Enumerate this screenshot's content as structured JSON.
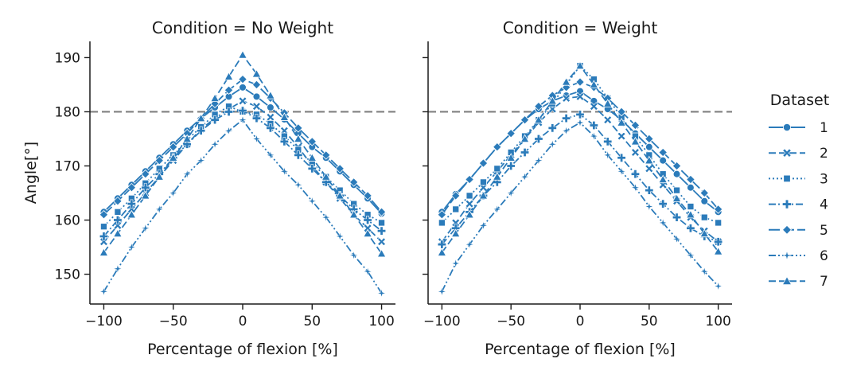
{
  "chart_data": [
    {
      "type": "line",
      "title": "Condition = No Weight",
      "xlabel": "Percentage of flexion [%]",
      "ylabel": "Angle[°]",
      "xlim": [
        -110,
        110
      ],
      "ylim": [
        144.5,
        193
      ],
      "xticks": [
        -100,
        -50,
        0,
        50,
        100
      ],
      "xtick_labels": [
        "−100",
        "−50",
        "0",
        "50",
        "100"
      ],
      "yticks": [
        150,
        160,
        170,
        180,
        190
      ],
      "ytick_labels": [
        "150",
        "160",
        "170",
        "180",
        "190"
      ],
      "reference_line": {
        "y": 180,
        "style": "dashed",
        "color": "#808080"
      },
      "grid": false,
      "x": [
        -100,
        -90,
        -80,
        -70,
        -60,
        -50,
        -40,
        -30,
        -20,
        -10,
        0,
        10,
        20,
        30,
        40,
        50,
        60,
        70,
        80,
        90,
        100
      ],
      "series": [
        {
          "name": "1",
          "marker": "circle",
          "dash": "solid",
          "values": [
            161.5,
            164.0,
            166.5,
            169.0,
            171.5,
            174.0,
            176.5,
            178.8,
            180.8,
            182.8,
            184.5,
            182.8,
            180.8,
            178.6,
            176.0,
            173.5,
            171.5,
            169.0,
            166.5,
            164.0,
            161.2
          ]
        },
        {
          "name": "2",
          "marker": "x",
          "dash": "dashed",
          "values": [
            156.0,
            159.0,
            162.0,
            165.0,
            168.0,
            171.0,
            174.0,
            176.8,
            178.8,
            180.5,
            182.0,
            181.0,
            179.0,
            176.5,
            173.5,
            170.0,
            167.0,
            164.0,
            161.0,
            158.5,
            156.0
          ]
        },
        {
          "name": "3",
          "marker": "square",
          "dash": "dotted",
          "values": [
            158.8,
            161.5,
            164.0,
            166.8,
            169.5,
            172.0,
            174.8,
            177.2,
            179.5,
            181.0,
            180.0,
            179.5,
            177.8,
            175.5,
            173.0,
            170.5,
            168.0,
            165.5,
            163.0,
            161.0,
            159.5
          ]
        },
        {
          "name": "4",
          "marker": "plus",
          "dash": "dashdot",
          "values": [
            157.0,
            160.0,
            163.0,
            166.0,
            168.5,
            171.5,
            174.0,
            176.5,
            178.5,
            180.0,
            180.2,
            178.8,
            177.0,
            174.5,
            172.0,
            169.5,
            167.0,
            164.5,
            162.0,
            160.0,
            158.0
          ]
        },
        {
          "name": "5",
          "marker": "diamond",
          "dash": "longdash",
          "values": [
            161.0,
            163.5,
            166.0,
            168.5,
            171.0,
            173.5,
            176.0,
            178.8,
            181.5,
            184.0,
            186.0,
            185.0,
            182.5,
            179.8,
            177.0,
            174.5,
            172.0,
            169.5,
            167.0,
            164.5,
            161.5
          ]
        },
        {
          "name": "6",
          "marker": "star",
          "dash": "dashdotdot",
          "values": [
            146.8,
            151.0,
            155.0,
            158.5,
            162.0,
            165.0,
            168.5,
            171.0,
            174.0,
            176.5,
            178.5,
            175.0,
            172.0,
            169.0,
            166.5,
            163.5,
            160.5,
            157.0,
            153.5,
            150.5,
            146.5
          ]
        },
        {
          "name": "7",
          "marker": "triangle",
          "dash": "dashed",
          "values": [
            154.0,
            157.5,
            161.0,
            164.5,
            168.0,
            171.5,
            175.0,
            178.8,
            182.5,
            186.5,
            190.5,
            187.0,
            183.0,
            179.0,
            175.0,
            171.5,
            168.0,
            164.5,
            161.0,
            157.5,
            153.8
          ]
        }
      ]
    },
    {
      "type": "line",
      "title": "Condition = Weight",
      "xlabel": "Percentage of flexion [%]",
      "ylabel": "",
      "xlim": [
        -110,
        110
      ],
      "ylim": [
        144.5,
        193
      ],
      "xticks": [
        -100,
        -50,
        0,
        50,
        100
      ],
      "xtick_labels": [
        "−100",
        "−50",
        "0",
        "50",
        "100"
      ],
      "yticks": [
        150,
        160,
        170,
        180,
        190
      ],
      "ytick_labels": [
        "",
        "",
        "",
        "",
        ""
      ],
      "reference_line": {
        "y": 180,
        "style": "dashed",
        "color": "#808080"
      },
      "grid": false,
      "x": [
        -100,
        -90,
        -80,
        -70,
        -60,
        -50,
        -40,
        -30,
        -20,
        -10,
        0,
        10,
        20,
        30,
        40,
        50,
        60,
        70,
        80,
        90,
        100
      ],
      "series": [
        {
          "name": "1",
          "marker": "circle",
          "dash": "solid",
          "values": [
            161.5,
            164.8,
            167.5,
            170.5,
            173.5,
            176.0,
            178.5,
            180.5,
            182.0,
            183.0,
            183.8,
            182.0,
            180.5,
            178.5,
            176.0,
            173.5,
            171.0,
            168.5,
            166.0,
            163.5,
            161.5
          ]
        },
        {
          "name": "2",
          "marker": "x",
          "dash": "dashed",
          "values": [
            156.0,
            159.5,
            163.0,
            166.0,
            169.0,
            172.0,
            175.0,
            178.0,
            180.5,
            182.5,
            182.8,
            181.0,
            178.5,
            175.5,
            172.5,
            169.5,
            166.5,
            163.5,
            160.5,
            158.0,
            156.0
          ]
        },
        {
          "name": "3",
          "marker": "square",
          "dash": "dotted",
          "values": [
            159.5,
            162.0,
            164.5,
            167.0,
            169.5,
            172.5,
            175.5,
            178.5,
            181.5,
            185.0,
            188.5,
            186.0,
            182.5,
            179.0,
            175.5,
            172.0,
            168.5,
            165.5,
            162.5,
            160.5,
            159.5
          ]
        },
        {
          "name": "4",
          "marker": "plus",
          "dash": "dashdot",
          "values": [
            155.5,
            158.5,
            161.5,
            164.5,
            167.0,
            170.0,
            172.5,
            175.0,
            177.0,
            178.8,
            179.5,
            177.5,
            174.5,
            171.5,
            168.5,
            165.5,
            163.0,
            160.5,
            158.5,
            157.0,
            156.0
          ]
        },
        {
          "name": "5",
          "marker": "diamond",
          "dash": "longdash",
          "values": [
            161.0,
            164.5,
            167.5,
            170.5,
            173.5,
            176.0,
            178.5,
            181.0,
            183.0,
            184.5,
            185.5,
            184.5,
            182.5,
            180.0,
            177.5,
            175.0,
            172.5,
            170.0,
            167.5,
            165.0,
            162.0
          ]
        },
        {
          "name": "6",
          "marker": "star",
          "dash": "dashdotdot",
          "values": [
            146.8,
            152.0,
            155.5,
            159.0,
            162.0,
            165.0,
            168.0,
            171.0,
            174.0,
            176.5,
            178.0,
            175.5,
            172.0,
            169.0,
            166.0,
            162.5,
            159.5,
            156.5,
            153.5,
            150.5,
            147.8
          ]
        },
        {
          "name": "7",
          "marker": "triangle",
          "dash": "dashed",
          "values": [
            154.0,
            157.5,
            161.0,
            164.5,
            168.0,
            171.5,
            175.0,
            178.5,
            182.0,
            185.5,
            188.5,
            185.0,
            181.5,
            178.0,
            174.5,
            171.0,
            167.5,
            164.0,
            161.0,
            157.5,
            154.2
          ]
        }
      ]
    }
  ],
  "legend": {
    "title": "Dataset",
    "placement": "right",
    "entries": [
      "1",
      "2",
      "3",
      "4",
      "5",
      "6",
      "7"
    ]
  },
  "colors": {
    "series": "#2b7bba",
    "reference": "#808080",
    "axis": "#1a1a1a"
  }
}
